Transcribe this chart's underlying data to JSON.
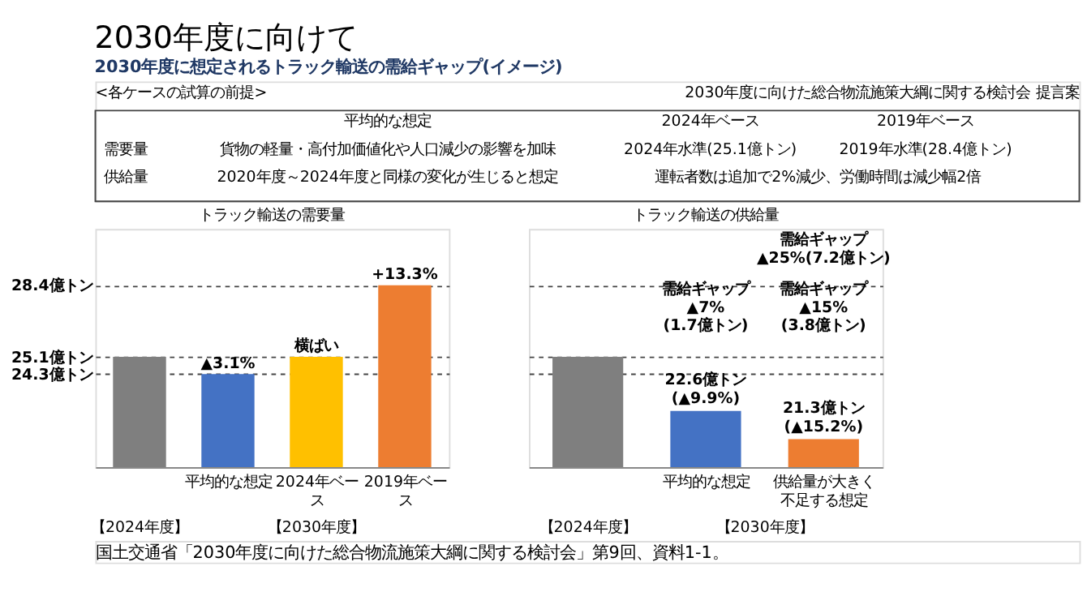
{
  "chart_data": [
    {
      "type": "other",
      "title": "2030年度に向けて",
      "subtitle": "2030年度に想定されるトラック輸送の需給ギャップ(イメージ)",
      "annotations": [
        "<各ケースの試算の前提>",
        "平均的な想定",
        "2024年ベース",
        "2019年ベース",
        "需要量",
        "貨物の軽量・高付加価値化や人口減少の影響を加味",
        "2024年水準(25.1億トン)",
        "2019年水準(28.4億トン)",
        "供給量",
        "2020年度～2024年度と同様の変化が生じると想定",
        "運転者数は追加で2%減少、労働時間は減少幅2倍",
        "2030年度に向けた総合物流施策大綱に関する検討会 提言案",
        "国土交通省「2030年度に向けた総合物流施策大綱に関する検討会」第9回、資料1-1。"
      ]
    },
    {
      "type": "bar",
      "title": "トラック輸送の需要量",
      "categories": [
        null,
        "平均的な想定",
        "2024年ベース",
        "2019年ベース"
      ],
      "values": [
        25.1,
        24.3,
        25.1,
        28.4
      ],
      "colors": [
        "#7f7f7f",
        "#4472c4",
        "#ffc000",
        "#ed7d31"
      ],
      "ylim": [
        20,
        31
      ],
      "yticks": [
        {
          "value": 24.3,
          "label": "24.3億トン"
        },
        {
          "value": 25.1,
          "label": "25.1億トン"
        },
        {
          "value": 28.4,
          "label": "28.4億トン"
        }
      ],
      "grid": "y",
      "annotations": [
        {
          "text": "▲3.1%",
          "x": "平均的な想定",
          "y": 24.3
        },
        {
          "text": "横ばい",
          "x": "2024年ベース",
          "y": 25.1
        },
        {
          "text": "+13.3%",
          "x": "2019年ベース",
          "y": 28.4
        },
        "【2024年度】",
        "【2030年度】"
      ]
    },
    {
      "type": "bar",
      "title": "トラック輸送の供給量",
      "categories": [
        null,
        "平均的な想定",
        "供給量が大きく不足する想定"
      ],
      "values": [
        25.1,
        22.6,
        21.3
      ],
      "colors": [
        "#7f7f7f",
        "#4472c4",
        "#ed7d31"
      ],
      "ylim": [
        20,
        31
      ],
      "yticks": [
        24.3,
        25.1,
        28.4
      ],
      "grid": "y",
      "tick_labels": "x",
      "value_labels": [
        null,
        "22.6億トン\n(▲9.9%)",
        "21.3億トン\n(▲15.2%)"
      ],
      "annotations": [
        "需給ギャップ\n▲7%\n(1.7億トン)",
        "需給ギャップ\n▲15%\n(3.8億トン)",
        "需給ギャップ\n▲25%(7.2億トン)",
        "【2024年度】",
        "【2030年度】"
      ]
    }
  ]
}
